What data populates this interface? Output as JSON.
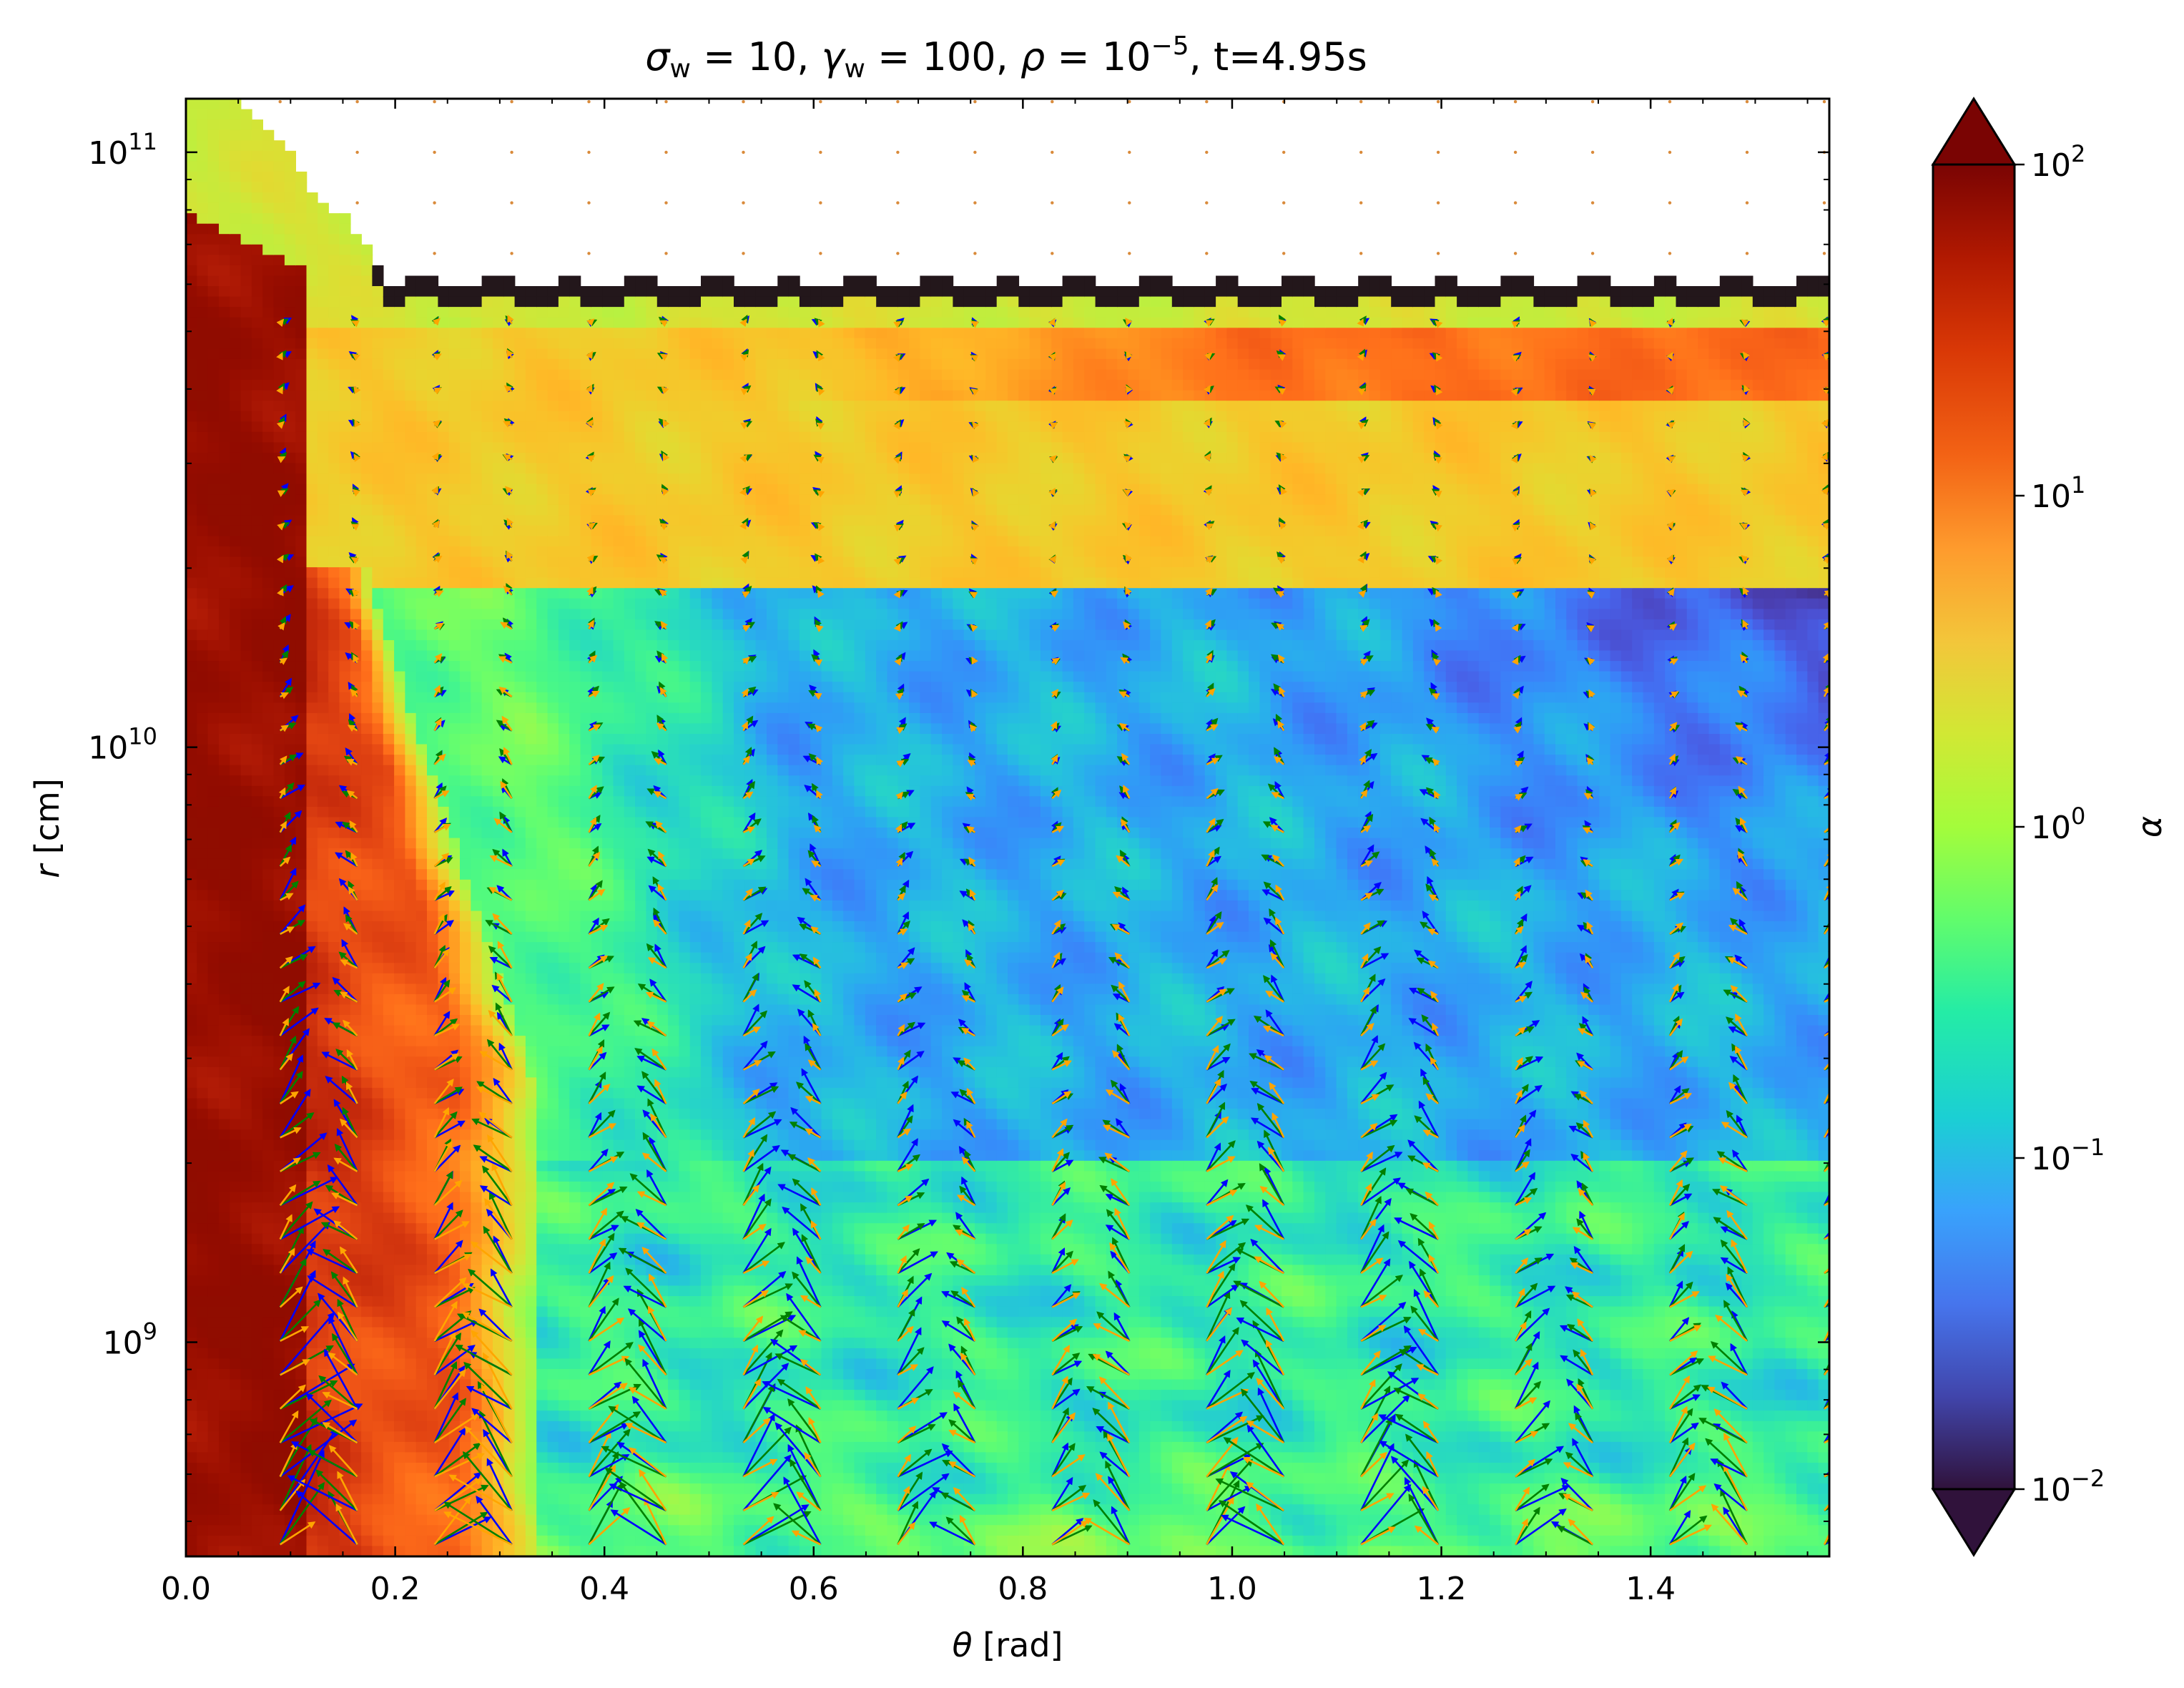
{
  "chart_data": {
    "type": "heatmap",
    "title_parts": {
      "sigma_sym": "σ",
      "sigma_sub": "w",
      "sigma_eq": " = 10, ",
      "gamma_sym": "γ",
      "gamma_sub": "w",
      "gamma_eq": " = 100, ",
      "rho_sym": "ρ",
      "rho_eq": " = 10",
      "rho_exp": "−5",
      "time": ", t=4.95s"
    },
    "xlabel": {
      "symbol": "θ",
      "unit": " [rad]"
    },
    "ylabel": {
      "symbol": "r",
      "unit": " [cm]"
    },
    "colorbar_label": "α",
    "x_range": [
      0.0,
      1.5708
    ],
    "y_range_log10": [
      8.64,
      11.09
    ],
    "y_scale": "log",
    "c_range_log10": [
      -2,
      2
    ],
    "c_scale": "log",
    "colormap": "turbo",
    "extend": "both",
    "x_ticks": [
      {
        "value": 0.0,
        "label": "0.0"
      },
      {
        "value": 0.2,
        "label": "0.2"
      },
      {
        "value": 0.4,
        "label": "0.4"
      },
      {
        "value": 0.6,
        "label": "0.6"
      },
      {
        "value": 0.8,
        "label": "0.8"
      },
      {
        "value": 1.0,
        "label": "1.0"
      },
      {
        "value": 1.2,
        "label": "1.2"
      },
      {
        "value": 1.4,
        "label": "1.4"
      }
    ],
    "y_ticks": [
      {
        "value_log10": 9,
        "base": "10",
        "exp": "9"
      },
      {
        "value_log10": 10,
        "base": "10",
        "exp": "10"
      },
      {
        "value_log10": 11,
        "base": "10",
        "exp": "11"
      }
    ],
    "c_ticks": [
      {
        "value_log10": -2,
        "base": "10",
        "exp": "−2"
      },
      {
        "value_log10": -1,
        "base": "10",
        "exp": "−1"
      },
      {
        "value_log10": 0,
        "base": "10",
        "exp": "0"
      },
      {
        "value_log10": 1,
        "base": "10",
        "exp": "1"
      },
      {
        "value_log10": 2,
        "base": "10",
        "exp": "2"
      }
    ],
    "regions_log10_alpha": [
      {
        "name": "polar jet core",
        "theta": [
          0.0,
          0.12
        ],
        "log10_r": [
          8.64,
          10.9
        ],
        "log10_alpha": 2.0
      },
      {
        "name": "jet sheath",
        "theta": [
          0.08,
          0.33
        ],
        "log10_r": [
          8.64,
          10.3
        ],
        "log10_alpha": 1.0
      },
      {
        "name": "shocked outer shell",
        "theta": [
          0.0,
          1.5708
        ],
        "log10_r": [
          10.26,
          10.76
        ],
        "log10_alpha": 0.55
      },
      {
        "name": "outer shell bright band",
        "theta": [
          0.9,
          1.5708
        ],
        "log10_r": [
          10.58,
          10.67
        ],
        "log10_alpha": 1.1
      },
      {
        "name": "inner wind cavity",
        "theta": [
          0.33,
          1.5708
        ],
        "log10_r": [
          9.3,
          10.24
        ],
        "log10_alpha": -1.1
      },
      {
        "name": "lower wind region",
        "theta": [
          0.3,
          1.5708
        ],
        "log10_r": [
          8.64,
          9.3
        ],
        "log10_alpha": -0.6
      },
      {
        "name": "leading dense edge",
        "theta": [
          0.2,
          1.5708
        ],
        "log10_r": [
          10.76,
          10.8
        ],
        "log10_alpha": -2.0
      }
    ],
    "vector_field_colors": [
      "#0000ff",
      "#008000",
      "#ffa500"
    ],
    "vector_grid": {
      "theta_step": 0.0738,
      "log10_r_step": 0.057,
      "log10_r_top_of_field": 10.75
    },
    "unresolved_marker_color": "#d98a3a"
  }
}
